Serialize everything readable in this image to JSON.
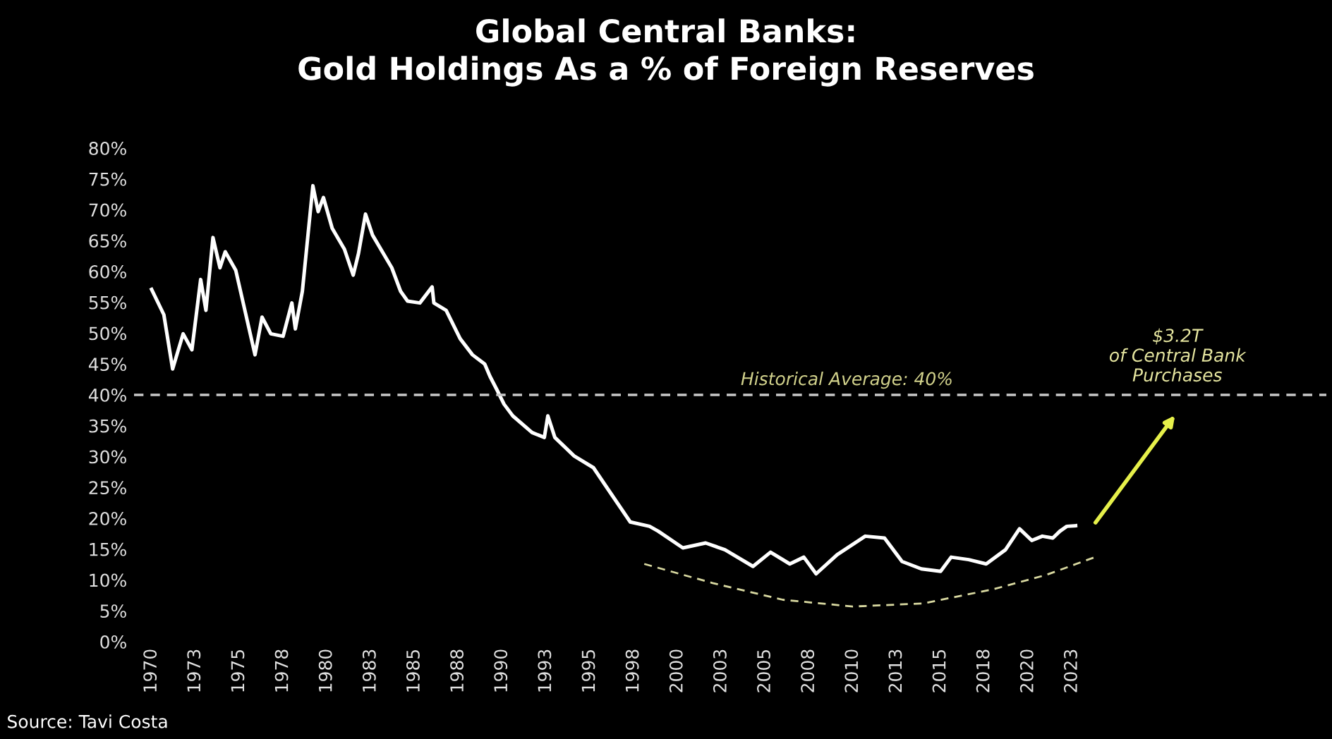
{
  "chart_data": {
    "type": "line",
    "title": "Global Central Banks:\nGold Holdings As a % of Foreign Reserves",
    "series": [
      {
        "color": "#ffffff",
        "line_style": "solid",
        "x": [
          1970.0,
          1970.7,
          1971.2,
          1971.8,
          1972.3,
          1972.8,
          1973.1,
          1973.5,
          1973.9,
          1974.2,
          1974.8,
          1975.9,
          1976.3,
          1976.8,
          1977.5,
          1978.0,
          1978.2,
          1978.6,
          1979.2,
          1979.5,
          1979.8,
          1980.3,
          1981.0,
          1981.5,
          1981.8,
          1982.2,
          1982.6,
          1983.7,
          1984.2,
          1984.6,
          1985.3,
          1986.0,
          1986.1,
          1986.8,
          1987.6,
          1988.3,
          1989.0,
          1989.3,
          1989.7,
          1990.1,
          1990.6,
          1991.7,
          1992.4,
          1992.6,
          1993.0,
          1994.1,
          1995.2,
          1996.2,
          1997.3,
          1998.4,
          1998.9,
          2000.3,
          2001.6,
          2002.7,
          2004.3,
          2005.3,
          2006.4,
          2007.2,
          2007.9,
          2009.1,
          2010.7,
          2011.8,
          2012.8,
          2013.9,
          2015.0,
          2015.6,
          2016.6,
          2017.6,
          2018.7,
          2019.5,
          2020.2,
          2020.8,
          2021.4,
          2021.8,
          2022.2,
          2022.7
        ],
        "values": [
          57.1,
          53,
          44.2,
          49.9,
          47.3,
          58.7,
          53.7,
          65.5,
          60.6,
          63.2,
          60.2,
          46.5,
          52.6,
          49.9,
          49.5,
          54.9,
          50.7,
          56.8,
          73.9,
          69.7,
          72,
          67,
          63.6,
          59.4,
          62.9,
          69.3,
          65.9,
          60.6,
          56.8,
          55.2,
          54.9,
          57.5,
          54.9,
          53.7,
          49.1,
          46.5,
          45,
          43,
          40.8,
          38.5,
          36.6,
          33.9,
          33.1,
          36.6,
          33.1,
          30.1,
          28.2,
          24,
          19.4,
          18.7,
          17.9,
          15.2,
          16,
          14.9,
          12.2,
          14.5,
          12.6,
          13.7,
          11,
          14.1,
          17.1,
          16.8,
          13,
          11.8,
          11.4,
          13.7,
          13.3,
          12.6,
          14.9,
          18.3,
          16.4,
          17.1,
          16.8,
          17.9,
          18.7,
          18.8
        ]
      },
      {
        "color": "#d8d8a0",
        "line_style": "dashed",
        "x": [
          1998.1,
          2002,
          2006,
          2010,
          2014,
          2018,
          2021,
          2023.8
        ],
        "values": [
          12.6,
          9.5,
          6.8,
          5.7,
          6.2,
          8.5,
          10.8,
          13.7
        ]
      }
    ],
    "xlim": [
      1969,
      2037
    ],
    "ylim": [
      0,
      80
    ],
    "xticks": [
      1970,
      {
        "value": 1972.5,
        "label": "1973"
      },
      1975,
      {
        "value": 1977.5,
        "label": "1978"
      },
      1980,
      {
        "value": 1982.5,
        "label": "1983"
      },
      1985,
      {
        "value": 1987.5,
        "label": "1988"
      },
      1990,
      {
        "value": 1992.5,
        "label": "1993"
      },
      1995,
      {
        "value": 1997.5,
        "label": "1998"
      },
      2000,
      {
        "value": 2002.5,
        "label": "2003"
      },
      2005,
      {
        "value": 2007.5,
        "label": "2008"
      },
      2010,
      {
        "value": 2012.5,
        "label": "2013"
      },
      2015,
      {
        "value": 2017.5,
        "label": "2018"
      },
      2020,
      {
        "value": 2022.5,
        "label": "2023"
      }
    ],
    "yticks": [
      {
        "value": 0,
        "label": "0%"
      },
      {
        "value": 5,
        "label": "5%"
      },
      {
        "value": 10,
        "label": "10%"
      },
      {
        "value": 15,
        "label": "15%"
      },
      {
        "value": 20,
        "label": "20%"
      },
      {
        "value": 25,
        "label": "25%"
      },
      {
        "value": 30,
        "label": "30%"
      },
      {
        "value": 35,
        "label": "35%"
      },
      {
        "value": 40,
        "label": "40%"
      },
      {
        "value": 45,
        "label": "45%"
      },
      {
        "value": 50,
        "label": "50%"
      },
      {
        "value": 55,
        "label": "55%"
      },
      {
        "value": 60,
        "label": "60%"
      },
      {
        "value": 65,
        "label": "65%"
      },
      {
        "value": 70,
        "label": "70%"
      },
      {
        "value": 75,
        "label": "75%"
      },
      {
        "value": 80,
        "label": "80%"
      }
    ],
    "ref_lines": [
      {
        "axis": "y",
        "value": 40,
        "label": "Historical Average: 40%",
        "color": "#c8c8c8",
        "line_style": "dashed"
      }
    ],
    "annotations": [
      "$3.2T\nof Central Bank\nPurchases",
      "Source: Tavi Costa"
    ],
    "grid": false,
    "legend": false
  }
}
